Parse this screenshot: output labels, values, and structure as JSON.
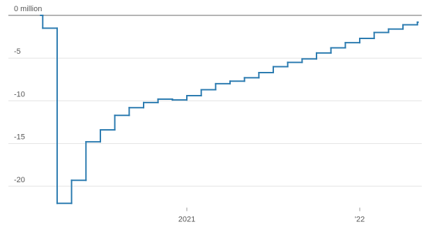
{
  "chart_data": {
    "type": "step-line",
    "categories": [
      null,
      null,
      null,
      null,
      null,
      null,
      null,
      null,
      null,
      null,
      null,
      "2021",
      null,
      null,
      null,
      null,
      null,
      null,
      null,
      null,
      null,
      null,
      null,
      "'22",
      null,
      null,
      null,
      null
    ],
    "series": [
      {
        "color": "#2b7bb0",
        "values": [
          0,
          -1.5,
          -22,
          -19.3,
          -14.8,
          -13.4,
          -11.7,
          -10.8,
          -10.2,
          -9.8,
          -9.9,
          -9.4,
          -8.7,
          -8.0,
          -7.7,
          -7.3,
          -6.7,
          -6.0,
          -5.5,
          -5.1,
          -4.4,
          -3.8,
          -3.2,
          -2.7,
          -2.0,
          -1.6,
          -1.1,
          -0.8
        ]
      }
    ],
    "ylim": [
      -22.5,
      0
    ],
    "yticks": [
      {
        "value": 0,
        "label": "0 million"
      },
      -5,
      -10,
      -15,
      -20
    ],
    "grid": true
  }
}
